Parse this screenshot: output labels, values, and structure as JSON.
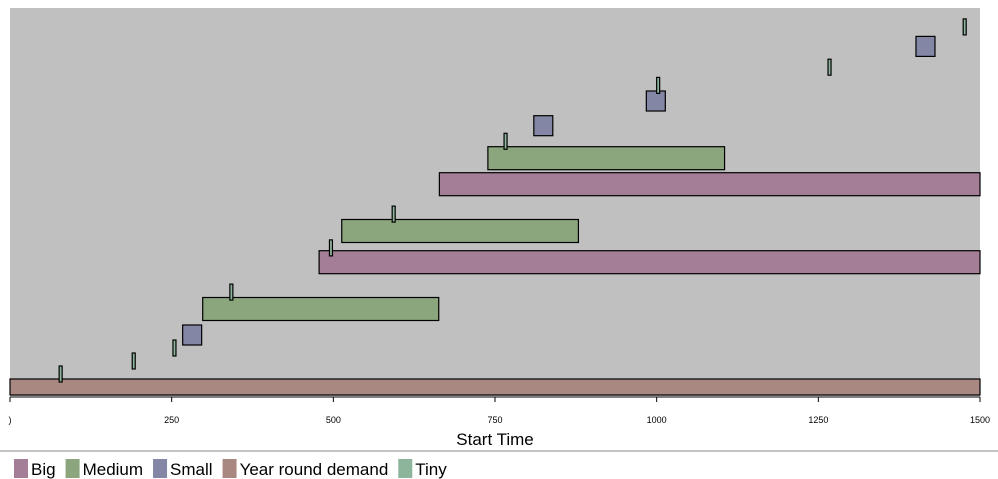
{
  "chart_data": {
    "type": "gantt",
    "xlabel": "Start Time",
    "xlim": [
      0,
      1500
    ],
    "x_ticks": [
      {
        "value": 0,
        "label": ")"
      },
      {
        "value": 250,
        "label": "250"
      },
      {
        "value": 500,
        "label": "500"
      },
      {
        "value": 750,
        "label": "750"
      },
      {
        "value": 1000,
        "label": "1000"
      },
      {
        "value": 1250,
        "label": "1250"
      },
      {
        "value": 1500,
        "label": "1500"
      }
    ],
    "series": [
      {
        "name": "Big",
        "color": "#a47d96"
      },
      {
        "name": "Medium",
        "color": "#8ba57d"
      },
      {
        "name": "Small",
        "color": "#8386a4"
      },
      {
        "name": "Year round demand",
        "color": "#a88880"
      },
      {
        "name": "Tiny",
        "color": "#8db59c"
      }
    ],
    "bars": [
      {
        "series": "Year round demand",
        "start": 0,
        "end": 1500,
        "row": 0
      },
      {
        "series": "Tiny",
        "start": 76,
        "end": 80,
        "row": 0.5
      },
      {
        "series": "Tiny",
        "start": 189,
        "end": 193,
        "row": 1
      },
      {
        "series": "Tiny",
        "start": 252,
        "end": 256,
        "row": 1.5
      },
      {
        "series": "Small",
        "start": 267,
        "end": 298,
        "row": 2
      },
      {
        "series": "Medium",
        "start": 298,
        "end": 663,
        "row": 3
      },
      {
        "series": "Tiny",
        "start": 340,
        "end": 344,
        "row": 3.65
      },
      {
        "series": "Big",
        "start": 478,
        "end": 1500,
        "row": 4.8
      },
      {
        "series": "Tiny",
        "start": 494,
        "end": 498,
        "row": 5.35
      },
      {
        "series": "Medium",
        "start": 513,
        "end": 879,
        "row": 6
      },
      {
        "series": "Tiny",
        "start": 591,
        "end": 595,
        "row": 6.65
      },
      {
        "series": "Big",
        "start": 664,
        "end": 1500,
        "row": 7.8
      },
      {
        "series": "Medium",
        "start": 739,
        "end": 1105,
        "row": 8.8
      },
      {
        "series": "Tiny",
        "start": 764,
        "end": 768,
        "row": 9.45
      },
      {
        "series": "Small",
        "start": 810,
        "end": 841,
        "row": 10.05
      },
      {
        "series": "Small",
        "start": 984,
        "end": 1015,
        "row": 11
      },
      {
        "series": "Tiny",
        "start": 1000,
        "end": 1004,
        "row": 11.6
      },
      {
        "series": "Tiny",
        "start": 1265,
        "end": 1269,
        "row": 12.3
      },
      {
        "series": "Small",
        "start": 1401,
        "end": 1432,
        "row": 13.1
      },
      {
        "series": "Tiny",
        "start": 1474,
        "end": 1478,
        "row": 13.85
      }
    ]
  }
}
